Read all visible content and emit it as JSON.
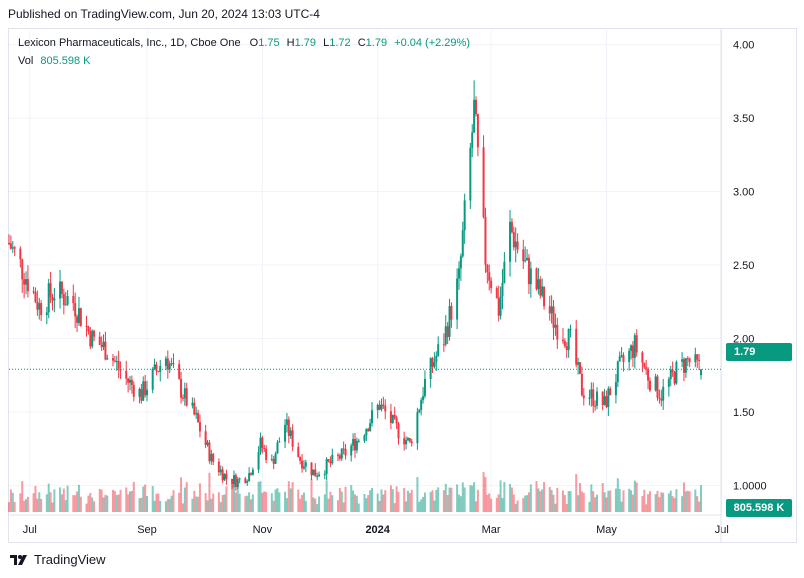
{
  "header": {
    "published": "Published on TradingView.com, Jun 20, 2024 13:03 UTC-4"
  },
  "legend": {
    "symbol": "Lexicon Pharmaceuticals, Inc., 1D, Cboe One",
    "o_label": "O",
    "o": "1.75",
    "h_label": "H",
    "h": "1.79",
    "l_label": "L",
    "l": "1.72",
    "c_label": "C",
    "c": "1.79",
    "change": "+0.04 (+2.29%)",
    "vol_label": "Vol",
    "vol": "805.598 K"
  },
  "price_tag": "1.79",
  "volume_tag": "805.598 K",
  "footer": {
    "brand": "TradingView"
  },
  "colors": {
    "up": "#089981",
    "down": "#f23645",
    "grid": "#f0f3fa",
    "last_price_line": "#089981"
  },
  "chart_data": {
    "type": "candlestick",
    "title": "Lexicon Pharmaceuticals, Inc., 1D, Cboe One",
    "y_axis": {
      "side": "right",
      "ticks": [
        "4.00",
        "3.50",
        "3.00",
        "2.50",
        "2.00",
        "1.50",
        "1.0000"
      ],
      "ylim": [
        0.9,
        4.1
      ]
    },
    "x_axis": {
      "ticks": [
        "Jul",
        "Sep",
        "Nov",
        "2024",
        "Mar",
        "May",
        "Jul"
      ]
    },
    "last_close": 1.79,
    "last_volume": "805.598 K",
    "grid": true,
    "close_path": [
      {
        "date": "2023-06-20",
        "close": 2.65
      },
      {
        "date": "2023-06-28",
        "close": 2.45
      },
      {
        "date": "2023-07-06",
        "close": 2.22
      },
      {
        "date": "2023-07-14",
        "close": 2.32
      },
      {
        "date": "2023-07-24",
        "close": 2.25
      },
      {
        "date": "2023-08-03",
        "close": 2.0
      },
      {
        "date": "2023-08-11",
        "close": 1.92
      },
      {
        "date": "2023-08-21",
        "close": 1.72
      },
      {
        "date": "2023-08-29",
        "close": 1.62
      },
      {
        "date": "2023-09-06",
        "close": 1.78
      },
      {
        "date": "2023-09-11",
        "close": 1.88
      },
      {
        "date": "2023-09-19",
        "close": 1.65
      },
      {
        "date": "2023-09-27",
        "close": 1.45
      },
      {
        "date": "2023-10-05",
        "close": 1.18
      },
      {
        "date": "2023-10-13",
        "close": 1.05
      },
      {
        "date": "2023-10-19",
        "close": 1.03
      },
      {
        "date": "2023-10-25",
        "close": 1.08
      },
      {
        "date": "2023-10-31",
        "close": 1.28
      },
      {
        "date": "2023-11-06",
        "close": 1.15
      },
      {
        "date": "2023-11-13",
        "close": 1.42
      },
      {
        "date": "2023-11-21",
        "close": 1.18
      },
      {
        "date": "2023-11-29",
        "close": 1.08
      },
      {
        "date": "2023-12-07",
        "close": 1.15
      },
      {
        "date": "2023-12-15",
        "close": 1.22
      },
      {
        "date": "2023-12-22",
        "close": 1.32
      },
      {
        "date": "2024-01-02",
        "close": 1.55
      },
      {
        "date": "2024-01-10",
        "close": 1.4
      },
      {
        "date": "2024-01-18",
        "close": 1.28
      },
      {
        "date": "2024-01-26",
        "close": 1.7
      },
      {
        "date": "2024-02-05",
        "close": 2.0
      },
      {
        "date": "2024-02-13",
        "close": 2.4
      },
      {
        "date": "2024-02-21",
        "close": 3.55
      },
      {
        "date": "2024-02-27",
        "close": 2.55
      },
      {
        "date": "2024-03-05",
        "close": 2.2
      },
      {
        "date": "2024-03-11",
        "close": 2.75
      },
      {
        "date": "2024-03-19",
        "close": 2.5
      },
      {
        "date": "2024-03-27",
        "close": 2.3
      },
      {
        "date": "2024-04-04",
        "close": 2.1
      },
      {
        "date": "2024-04-12",
        "close": 1.98
      },
      {
        "date": "2024-04-18",
        "close": 1.65
      },
      {
        "date": "2024-04-24",
        "close": 1.6
      },
      {
        "date": "2024-04-30",
        "close": 1.55
      },
      {
        "date": "2024-05-08",
        "close": 1.8
      },
      {
        "date": "2024-05-16",
        "close": 1.95
      },
      {
        "date": "2024-05-24",
        "close": 1.72
      },
      {
        "date": "2024-05-30",
        "close": 1.62
      },
      {
        "date": "2024-06-07",
        "close": 1.78
      },
      {
        "date": "2024-06-13",
        "close": 1.85
      },
      {
        "date": "2024-06-20",
        "close": 1.79
      }
    ]
  }
}
